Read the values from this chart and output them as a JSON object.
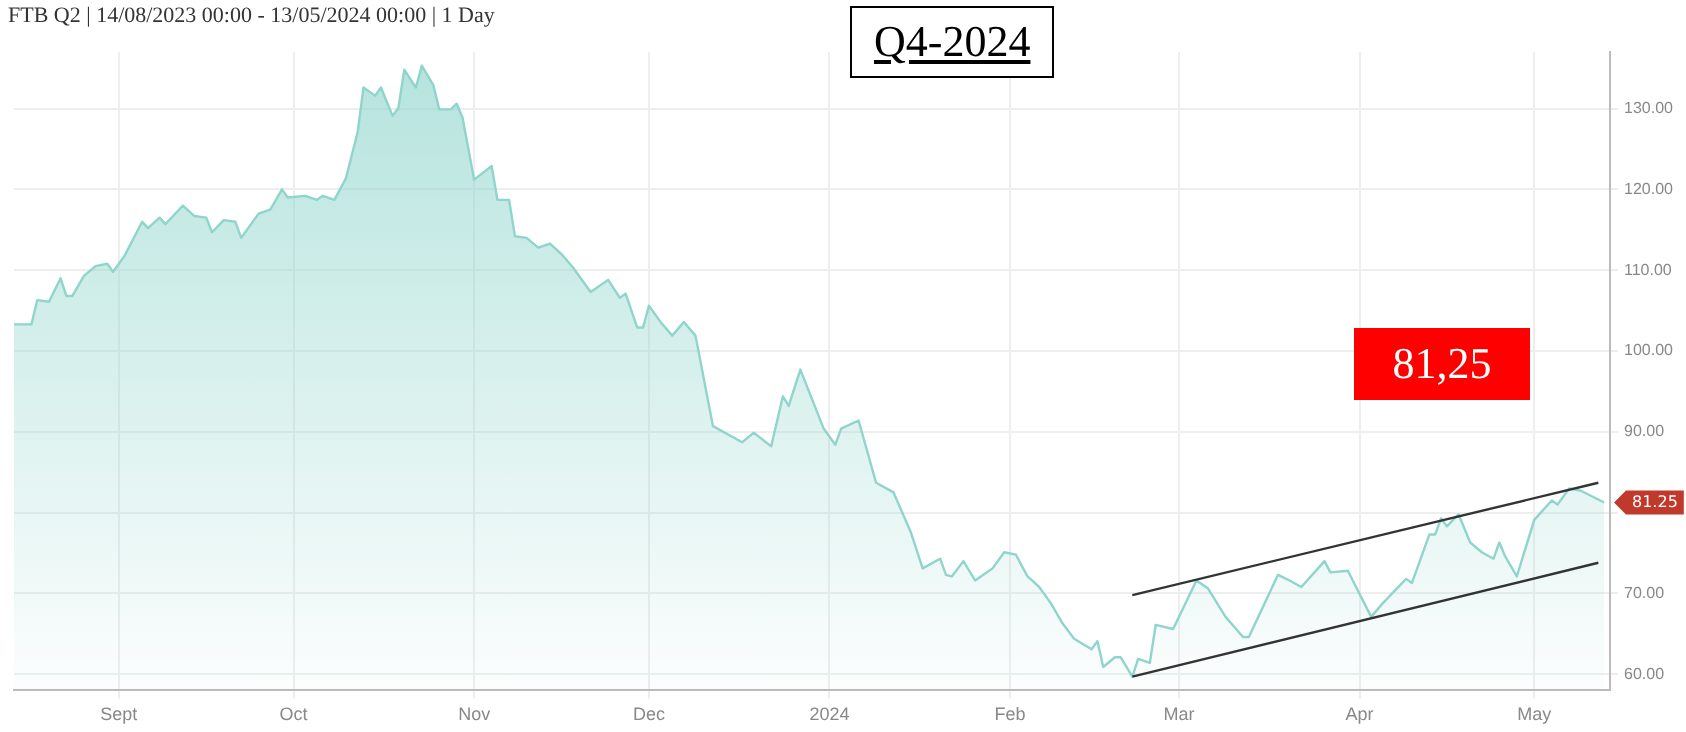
{
  "chart_data": {
    "type": "area",
    "title": "FTB Q2 | 14/08/2023 00:00 - 13/05/2024 00:00 | 1 Day",
    "subtitle": "Q4-2024",
    "xlim": [
      "2023-08-14",
      "2024-05-14"
    ],
    "xticks": [
      {
        "value": "2023-09-01",
        "label": "Sept"
      },
      {
        "value": "2023-10-01",
        "label": "Oct"
      },
      {
        "value": "2023-11-01",
        "label": "Nov"
      },
      {
        "value": "2023-12-01",
        "label": "Dec"
      },
      {
        "value": "2024-01-01",
        "label": "2024"
      },
      {
        "value": "2024-02-01",
        "label": "Feb"
      },
      {
        "value": "2024-03-01",
        "label": "Mar"
      },
      {
        "value": "2024-04-01",
        "label": "Apr"
      },
      {
        "value": "2024-05-01",
        "label": "May"
      }
    ],
    "ylim": [
      58,
      137
    ],
    "yticks": [
      {
        "value": 60,
        "label": "60.00"
      },
      {
        "value": 70,
        "label": "70.00"
      },
      {
        "value": 80,
        "label": null
      },
      {
        "value": 90,
        "label": "90.00"
      },
      {
        "value": 100,
        "label": "100.00"
      },
      {
        "value": 110,
        "label": "110.00"
      },
      {
        "value": 120,
        "label": "120.00"
      },
      {
        "value": 130,
        "label": "130.00"
      }
    ],
    "grid": true,
    "legend": false,
    "marker": "none",
    "annotations": [
      "81,25",
      {
        "text": "81.25",
        "x": "2024-05-13",
        "y": 81.25
      }
    ],
    "series": [
      {
        "color": "#8fd5cc",
        "x": [
          "2023-08-14",
          "2023-08-17",
          "2023-08-18",
          "2023-08-20",
          "2023-08-22",
          "2023-08-23",
          "2023-08-24",
          "2023-08-26",
          "2023-08-28",
          "2023-08-30",
          "2023-08-31",
          "2023-09-02",
          "2023-09-05",
          "2023-09-06",
          "2023-09-08",
          "2023-09-09",
          "2023-09-12",
          "2023-09-14",
          "2023-09-16",
          "2023-09-17",
          "2023-09-19",
          "2023-09-21",
          "2023-09-22",
          "2023-09-25",
          "2023-09-27",
          "2023-09-29",
          "2023-09-30",
          "2023-10-03",
          "2023-10-05",
          "2023-10-06",
          "2023-10-08",
          "2023-10-10",
          "2023-10-12",
          "2023-10-13",
          "2023-10-15",
          "2023-10-16",
          "2023-10-18",
          "2023-10-19",
          "2023-10-20",
          "2023-10-22",
          "2023-10-23",
          "2023-10-25",
          "2023-10-26",
          "2023-10-28",
          "2023-10-29",
          "2023-10-30",
          "2023-11-01",
          "2023-11-04",
          "2023-11-05",
          "2023-11-07",
          "2023-11-08",
          "2023-11-10",
          "2023-11-12",
          "2023-11-14",
          "2023-11-16",
          "2023-11-18",
          "2023-11-21",
          "2023-11-24",
          "2023-11-26",
          "2023-11-27",
          "2023-11-29",
          "2023-11-30",
          "2023-12-01",
          "2023-12-03",
          "2023-12-05",
          "2023-12-07",
          "2023-12-09",
          "2023-12-12",
          "2023-12-17",
          "2023-12-19",
          "2023-12-22",
          "2023-12-24",
          "2023-12-25",
          "2023-12-27",
          "2023-12-31",
          "2024-01-02",
          "2024-01-03",
          "2024-01-06",
          "2024-01-09",
          "2024-01-12",
          "2024-01-15",
          "2024-01-17",
          "2024-01-20",
          "2024-01-21",
          "2024-01-22",
          "2024-01-24",
          "2024-01-26",
          "2024-01-29",
          "2024-01-31",
          "2024-02-02",
          "2024-02-04",
          "2024-02-06",
          "2024-02-08",
          "2024-02-10",
          "2024-02-12",
          "2024-02-15",
          "2024-02-16",
          "2024-02-17",
          "2024-02-19",
          "2024-02-20",
          "2024-02-22",
          "2024-02-23",
          "2024-02-25",
          "2024-02-26",
          "2024-02-29",
          "2024-03-04",
          "2024-03-06",
          "2024-03-09",
          "2024-03-12",
          "2024-03-13",
          "2024-03-18",
          "2024-03-20",
          "2024-03-22",
          "2024-03-26",
          "2024-03-27",
          "2024-03-30",
          "2024-04-03",
          "2024-04-05",
          "2024-04-09",
          "2024-04-10",
          "2024-04-13",
          "2024-04-14",
          "2024-04-15",
          "2024-04-16",
          "2024-04-18",
          "2024-04-20",
          "2024-04-22",
          "2024-04-24",
          "2024-04-25",
          "2024-04-26",
          "2024-04-28",
          "2024-05-01",
          "2024-05-04",
          "2024-05-05",
          "2024-05-07",
          "2024-05-09",
          "2024-05-13"
        ],
        "values": [
          103.3,
          103.3,
          106.3,
          106.1,
          109.0,
          106.8,
          106.8,
          109.3,
          110.5,
          110.8,
          109.8,
          111.8,
          116.0,
          115.2,
          116.5,
          115.7,
          118.0,
          116.7,
          116.5,
          114.7,
          116.2,
          116.0,
          114.0,
          117.0,
          117.5,
          120.0,
          119.0,
          119.2,
          118.7,
          119.2,
          118.7,
          121.4,
          127.1,
          132.6,
          131.6,
          132.6,
          129.1,
          130.1,
          134.8,
          132.6,
          135.3,
          132.9,
          129.9,
          129.9,
          130.6,
          128.9,
          121.2,
          122.9,
          118.7,
          118.7,
          114.2,
          114.0,
          112.8,
          113.3,
          112.0,
          110.3,
          107.3,
          108.8,
          106.6,
          107.1,
          102.9,
          102.9,
          105.6,
          103.6,
          101.9,
          103.6,
          101.9,
          90.7,
          88.7,
          89.9,
          88.2,
          94.4,
          93.2,
          97.7,
          90.4,
          88.4,
          90.4,
          91.4,
          83.7,
          82.5,
          77.5,
          73.1,
          74.3,
          72.3,
          72.1,
          74.0,
          71.6,
          73.1,
          75.1,
          74.8,
          72.1,
          70.8,
          68.8,
          66.3,
          64.4,
          63.1,
          64.1,
          60.9,
          62.1,
          62.1,
          59.7,
          61.9,
          61.4,
          66.1,
          65.6,
          71.6,
          70.6,
          67.1,
          64.6,
          64.6,
          72.3,
          71.6,
          70.8,
          74.0,
          72.6,
          72.8,
          67.1,
          68.8,
          71.8,
          71.3,
          77.3,
          77.3,
          79.3,
          78.3,
          79.8,
          76.3,
          75.1,
          74.3,
          76.3,
          74.6,
          72.1,
          79.1,
          81.5,
          81.0,
          83.0,
          82.7,
          81.25
        ]
      },
      {
        "type": "line",
        "color": "#333333",
        "x": [
          "2024-02-22",
          "2024-05-12"
        ],
        "values": [
          69.8,
          83.7
        ]
      },
      {
        "type": "line",
        "color": "#333333",
        "x": [
          "2024-02-22",
          "2024-05-12"
        ],
        "values": [
          59.7,
          73.8
        ]
      }
    ]
  }
}
